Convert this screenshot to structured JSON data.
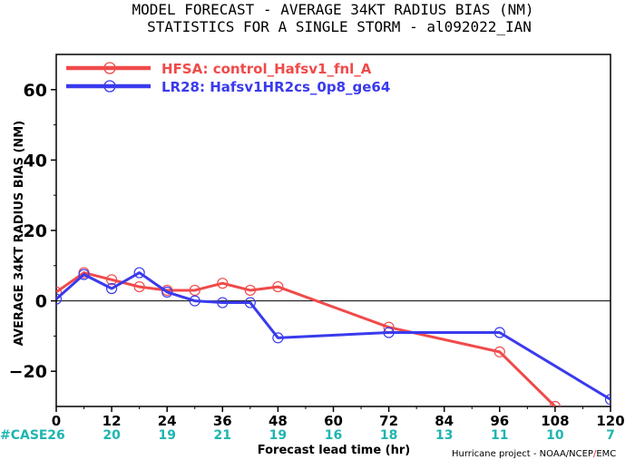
{
  "title_line1": "MODEL FORECAST - AVERAGE 34KT RADIUS BIAS (NM)",
  "title_line2": "STATISTICS FOR A SINGLE STORM - al092022_IAN",
  "credit_prefix": "Hurricane project - NOAA/NCEP",
  "credit_slash": "/",
  "credit_suffix": "EMC",
  "case_prefix": "#CASE",
  "colors": {
    "hfsa": "#f04a4a",
    "lr28": "#3a3aee",
    "case": "#1fb5b0",
    "slash": "#e02020"
  },
  "chart_data": {
    "type": "line",
    "xlabel": "Forecast lead time (hr)",
    "ylabel": "AVERAGE 34KT RADIUS BIAS (NM)",
    "xlim": [
      0,
      120
    ],
    "ylim": [
      -30,
      70
    ],
    "xticks": [
      0,
      12,
      24,
      36,
      48,
      60,
      72,
      84,
      96,
      108,
      120
    ],
    "yticks": [
      -20,
      0,
      20,
      40,
      60
    ],
    "ytick_labels": [
      "−20",
      "0",
      "20",
      "40",
      "60"
    ],
    "cases": [
      26,
      20,
      19,
      21,
      19,
      16,
      18,
      13,
      11,
      10,
      7
    ],
    "zero_line": true,
    "legend_position": "top-left",
    "series": [
      {
        "name": "HFSA: control_Hafsv1_fnl_A",
        "color": "#f04a4a",
        "x": [
          0,
          6,
          12,
          18,
          24,
          30,
          36,
          42,
          48,
          72,
          96,
          108
        ],
        "y": [
          2.5,
          8,
          6,
          4,
          3,
          3,
          5,
          3,
          4,
          -7.5,
          -14.5,
          -30
        ]
      },
      {
        "name": "LR28: Hafsv1HR2cs_0p8_ge64",
        "color": "#3a3aee",
        "x": [
          0,
          6,
          12,
          18,
          24,
          30,
          36,
          42,
          48,
          72,
          96,
          120
        ],
        "y": [
          0.5,
          7.5,
          3.5,
          8,
          2.5,
          0,
          -0.5,
          -0.5,
          -10.5,
          -9,
          -9,
          -28
        ]
      }
    ]
  }
}
